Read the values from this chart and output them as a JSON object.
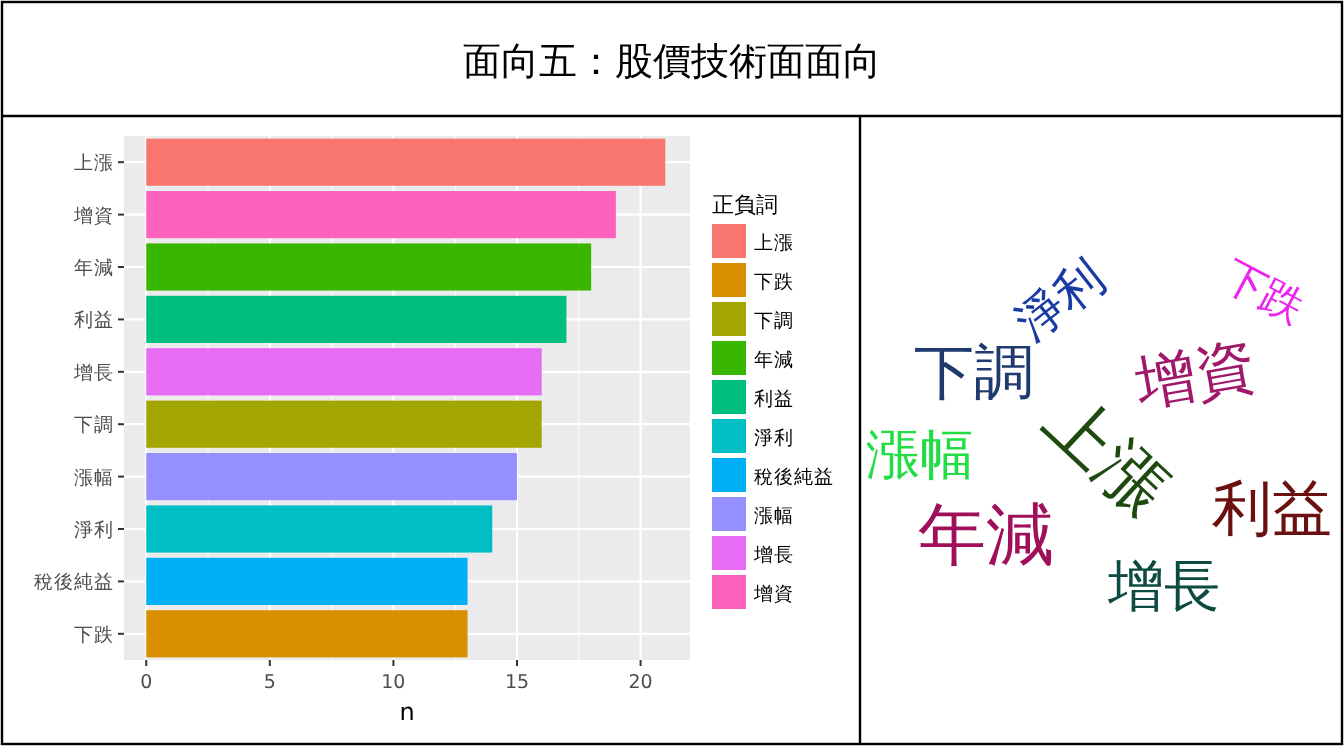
{
  "chart_data": [
    {
      "type": "bar",
      "title": "面向五：股價技術面面向",
      "orientation": "horizontal",
      "xlabel": "n",
      "legend_title": "正負詞",
      "legend": "right",
      "grid": true,
      "categories": [
        "上漲",
        "增資",
        "年減",
        "利益",
        "增長",
        "下調",
        "漲幅",
        "淨利",
        "稅後純益",
        "下跌"
      ],
      "xlim": [
        -0.9,
        22
      ],
      "xticks": [
        0,
        5,
        10,
        15,
        20
      ],
      "series": [
        {
          "name": "上漲",
          "color": "#f8766d",
          "values": [
            21,
            null,
            null,
            null,
            null,
            null,
            null,
            null,
            null,
            null
          ]
        },
        {
          "name": "下跌",
          "color": "#d89000",
          "values": [
            null,
            null,
            null,
            null,
            null,
            null,
            null,
            null,
            null,
            13
          ]
        },
        {
          "name": "下調",
          "color": "#a3a500",
          "values": [
            null,
            null,
            null,
            null,
            null,
            16,
            null,
            null,
            null,
            null
          ]
        },
        {
          "name": "年減",
          "color": "#39b600",
          "values": [
            null,
            null,
            18,
            null,
            null,
            null,
            null,
            null,
            null,
            null
          ]
        },
        {
          "name": "利益",
          "color": "#00bf7d",
          "values": [
            null,
            null,
            null,
            17,
            null,
            null,
            null,
            null,
            null,
            null
          ]
        },
        {
          "name": "淨利",
          "color": "#00bfc4",
          "values": [
            null,
            null,
            null,
            null,
            null,
            null,
            null,
            14,
            null,
            null
          ]
        },
        {
          "name": "稅後純益",
          "color": "#00b0f6",
          "values": [
            null,
            null,
            null,
            null,
            null,
            null,
            null,
            null,
            13,
            null
          ]
        },
        {
          "name": "漲幅",
          "color": "#9590ff",
          "values": [
            null,
            null,
            null,
            null,
            null,
            null,
            15,
            null,
            null,
            null
          ]
        },
        {
          "name": "增長",
          "color": "#e76bf3",
          "values": [
            null,
            null,
            null,
            null,
            16,
            null,
            null,
            null,
            null,
            null
          ]
        },
        {
          "name": "增資",
          "color": "#ff62bc",
          "values": [
            null,
            19,
            null,
            null,
            null,
            null,
            null,
            null,
            null,
            null
          ]
        }
      ]
    },
    {
      "type": "other",
      "annotations": [
        "上漲",
        "年減",
        "增資",
        "利益",
        "下調",
        "增長",
        "漲幅",
        "淨利",
        "下跌"
      ]
    }
  ]
}
